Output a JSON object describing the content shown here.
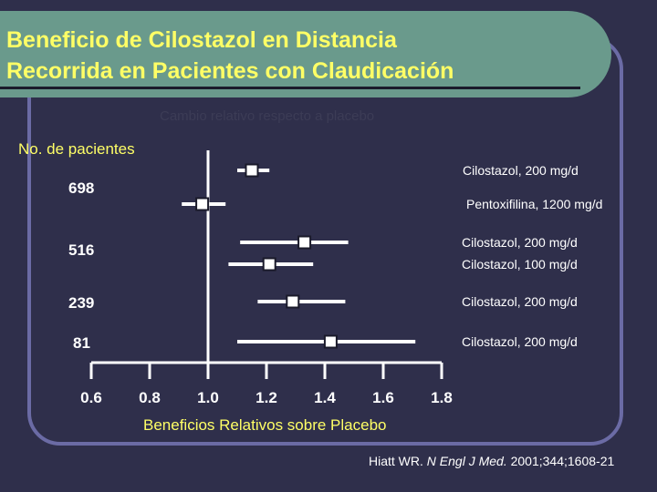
{
  "title": {
    "line1": "Beneficio de Cilostazol en Distancia",
    "line2": "Recorrida en Pacientes con Claudicación"
  },
  "subtitle": "Cambio relativo respecto a placebo",
  "patients_label": "No. de pacientes",
  "citation": {
    "author": "Hiatt WR.",
    "journal": "N Engl J Med.",
    "details": "2001;344;1608-21"
  },
  "colors": {
    "background": "#2f2f4b",
    "title_bar": "#6a9a8c",
    "accent_text": "#ffff66",
    "frame": "#6b6ba5",
    "marks": "#ffffff"
  },
  "chart_data": {
    "type": "forest",
    "xlabel": "Beneficios Relativos sobre Placebo",
    "xlim": [
      0.6,
      1.8
    ],
    "xticks": [
      "0.6",
      "0.8",
      "1.0",
      "1.2",
      "1.4",
      "1.6",
      "1.8"
    ],
    "reference_x": 1.0,
    "groups": [
      {
        "n": "698",
        "rows": [
          0,
          1
        ]
      },
      {
        "n": "516",
        "rows": [
          2,
          3
        ]
      },
      {
        "n": "239",
        "rows": [
          4
        ]
      },
      {
        "n": "81",
        "rows": [
          5
        ]
      }
    ],
    "rows": [
      {
        "label": "Cilostazol, 200 mg/d",
        "estimate": 1.15,
        "lower": 1.1,
        "upper": 1.21
      },
      {
        "label": "Pentoxifilina, 1200 mg/d",
        "estimate": 0.98,
        "lower": 0.91,
        "upper": 1.06
      },
      {
        "label": "Cilostazol, 200 mg/d",
        "estimate": 1.33,
        "lower": 1.11,
        "upper": 1.48
      },
      {
        "label": "Cilostazol, 100 mg/d",
        "estimate": 1.21,
        "lower": 1.07,
        "upper": 1.36
      },
      {
        "label": "Cilostazol, 200 mg/d",
        "estimate": 1.29,
        "lower": 1.17,
        "upper": 1.47
      },
      {
        "label": "Cilostazol, 200 mg/d",
        "estimate": 1.42,
        "lower": 1.1,
        "upper": 1.71
      }
    ]
  }
}
